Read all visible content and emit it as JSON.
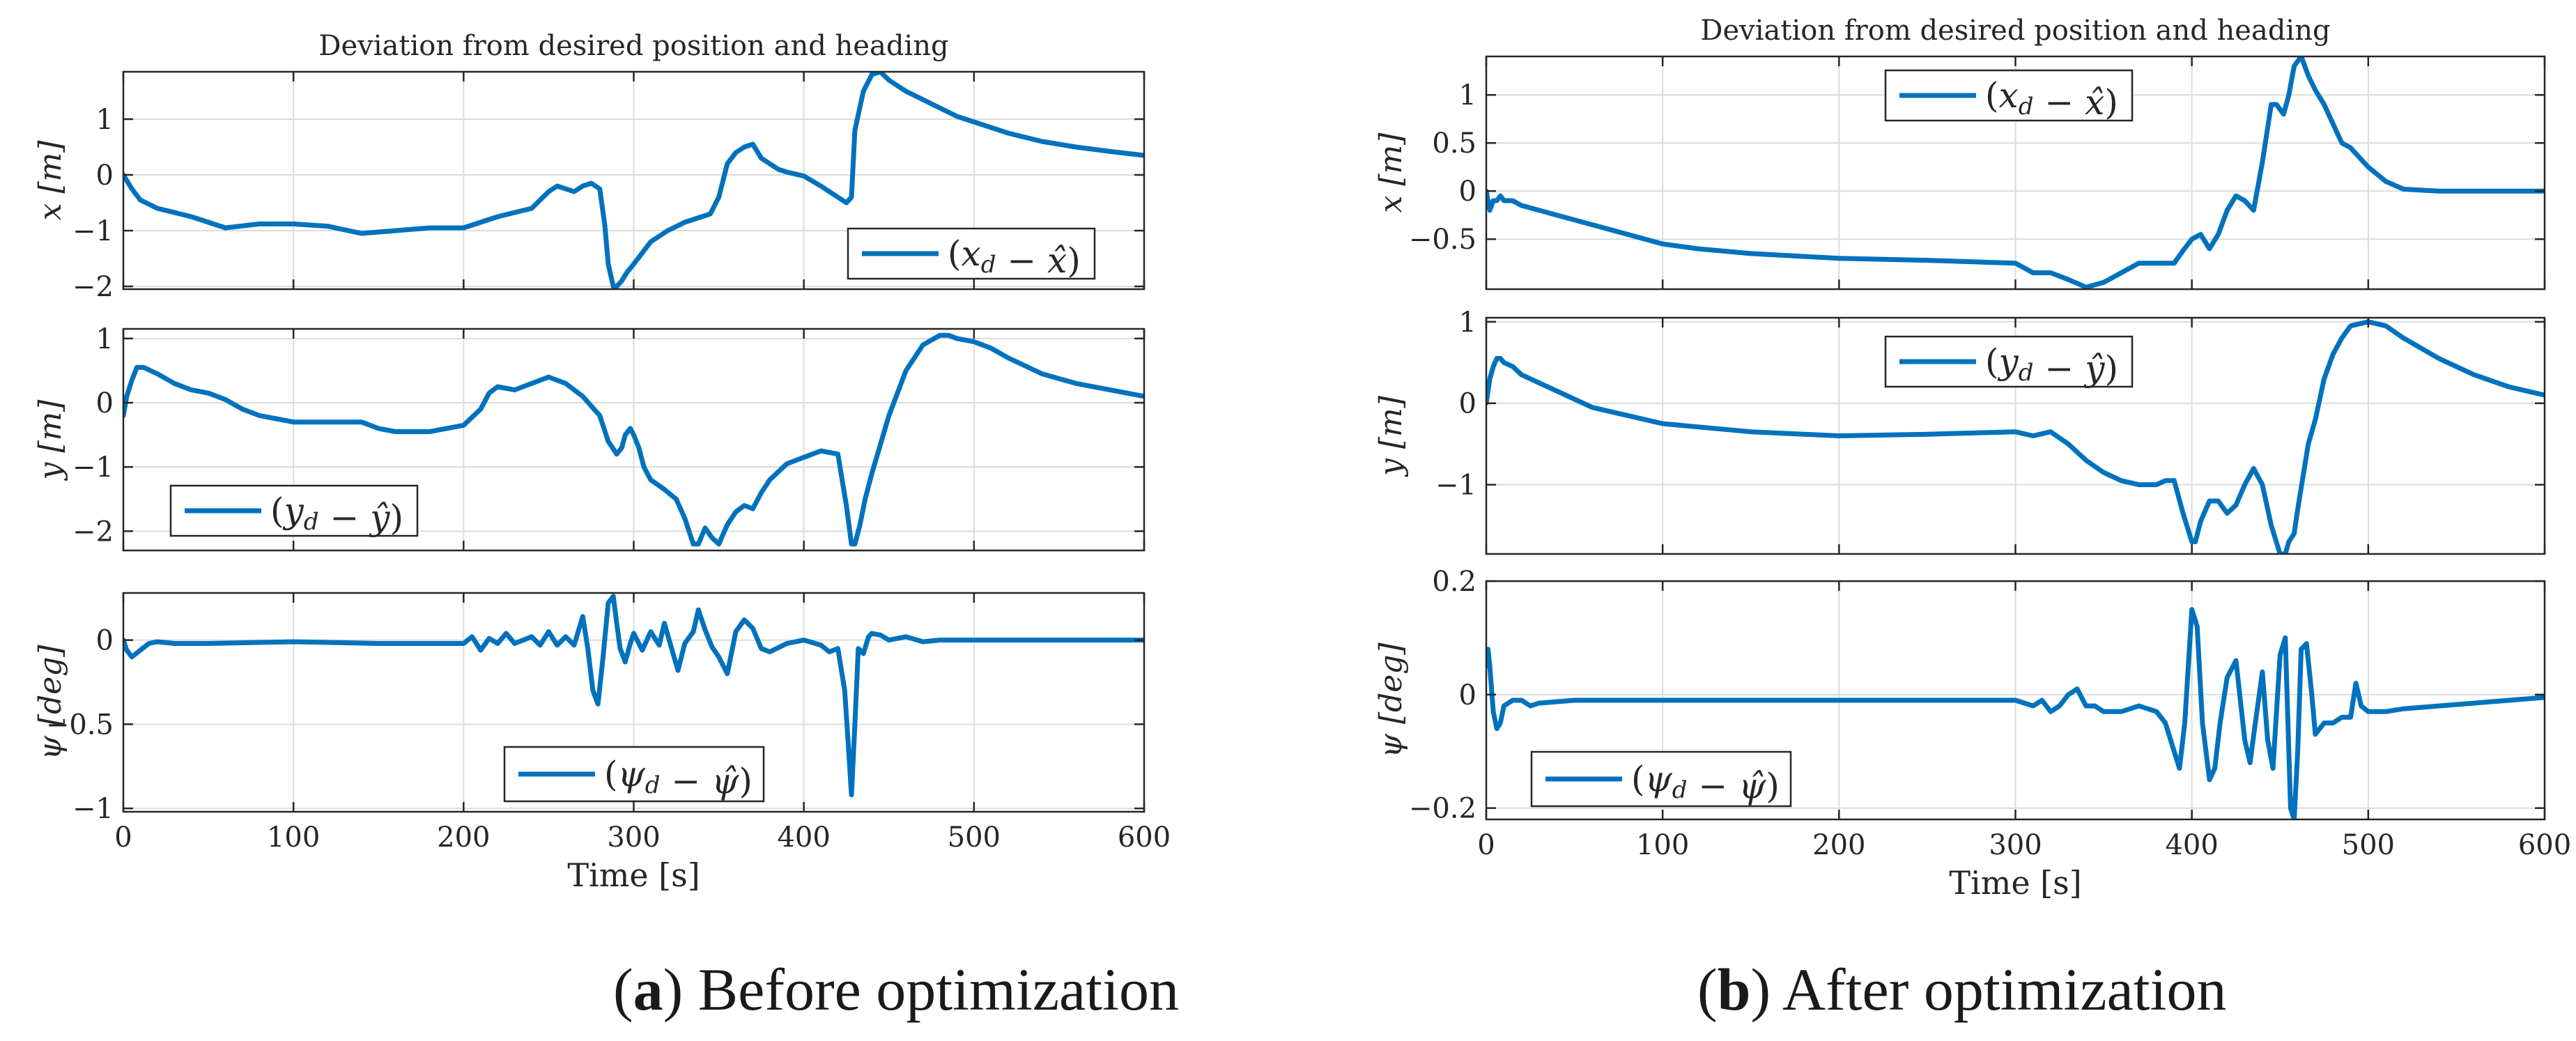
{
  "figure": {
    "series_color": "#0072BD",
    "captions": [
      {
        "tag": "a",
        "text": "Before optimization"
      },
      {
        "tag": "b",
        "text": "After optimization"
      }
    ]
  },
  "chart_data": [
    {
      "type": "line",
      "panel": "a",
      "row": 0,
      "title": "Deviation from desired position and heading",
      "xlabel": "",
      "ylabel": "x [m]",
      "xlim": [
        0,
        600
      ],
      "ylim": [
        -2.05,
        1.85
      ],
      "xticks": [
        0,
        100,
        200,
        300,
        400,
        500,
        600
      ],
      "show_xticklabels": false,
      "yticks": [
        -2,
        -1,
        0,
        1
      ],
      "yticklabels": [
        "-2",
        "-1",
        "0",
        "1"
      ],
      "grid": true,
      "legend": "(x_d − x̂)",
      "legend_loc": "lower-right",
      "series": [
        {
          "name": "(x_d − x̂)",
          "x": [
            0,
            2,
            5,
            10,
            20,
            40,
            60,
            80,
            100,
            120,
            140,
            160,
            180,
            200,
            210,
            220,
            240,
            250,
            255,
            260,
            265,
            270,
            275,
            280,
            283,
            285,
            288,
            290,
            293,
            296,
            300,
            310,
            320,
            330,
            340,
            345,
            350,
            355,
            360,
            365,
            370,
            375,
            380,
            385,
            390,
            400,
            410,
            420,
            425,
            428,
            430,
            435,
            440,
            445,
            450,
            460,
            470,
            480,
            490,
            500,
            520,
            540,
            560,
            580,
            600
          ],
          "y": [
            0,
            -0.1,
            -0.25,
            -0.45,
            -0.6,
            -0.75,
            -0.95,
            -0.88,
            -0.88,
            -0.92,
            -1.05,
            -1,
            -0.95,
            -0.95,
            -0.85,
            -0.75,
            -0.6,
            -0.3,
            -0.2,
            -0.25,
            -0.3,
            -0.2,
            -0.15,
            -0.25,
            -0.9,
            -1.6,
            -2,
            -2,
            -1.9,
            -1.75,
            -1.6,
            -1.2,
            -1,
            -0.85,
            -0.75,
            -0.7,
            -0.4,
            0.2,
            0.4,
            0.5,
            0.55,
            0.3,
            0.2,
            0.1,
            0.05,
            -0.02,
            -0.2,
            -0.4,
            -0.5,
            -0.4,
            0.8,
            1.5,
            1.8,
            1.85,
            1.7,
            1.5,
            1.35,
            1.2,
            1.05,
            0.95,
            0.75,
            0.6,
            0.5,
            0.42,
            0.35
          ]
        }
      ]
    },
    {
      "type": "line",
      "panel": "a",
      "row": 1,
      "xlabel": "",
      "ylabel": "y [m]",
      "xlim": [
        0,
        600
      ],
      "ylim": [
        -2.3,
        1.15
      ],
      "xticks": [
        0,
        100,
        200,
        300,
        400,
        500,
        600
      ],
      "show_xticklabels": false,
      "yticks": [
        -2,
        -1,
        0,
        1
      ],
      "yticklabels": [
        "-2",
        "-1",
        "0",
        "1"
      ],
      "grid": true,
      "legend": "(y_d − ŷ)",
      "legend_loc": "lower-left",
      "series": [
        {
          "name": "(y_d − ŷ)",
          "x": [
            0,
            2,
            5,
            8,
            12,
            20,
            30,
            40,
            50,
            60,
            70,
            80,
            90,
            100,
            120,
            140,
            150,
            160,
            180,
            200,
            210,
            215,
            220,
            230,
            240,
            250,
            260,
            270,
            280,
            285,
            290,
            293,
            295,
            298,
            300,
            303,
            306,
            310,
            318,
            325,
            330,
            335,
            338,
            342,
            346,
            350,
            355,
            360,
            365,
            370,
            375,
            380,
            390,
            400,
            410,
            420,
            425,
            428,
            430,
            433,
            436,
            440,
            450,
            460,
            470,
            480,
            485,
            490,
            500,
            510,
            520,
            540,
            560,
            580,
            600
          ],
          "y": [
            -0.2,
            0.1,
            0.35,
            0.55,
            0.55,
            0.45,
            0.3,
            0.2,
            0.15,
            0.05,
            -0.1,
            -0.2,
            -0.25,
            -0.3,
            -0.3,
            -0.3,
            -0.4,
            -0.45,
            -0.45,
            -0.35,
            -0.1,
            0.15,
            0.25,
            0.2,
            0.3,
            0.4,
            0.3,
            0.1,
            -0.2,
            -0.6,
            -0.8,
            -0.7,
            -0.5,
            -0.4,
            -0.5,
            -0.7,
            -1,
            -1.2,
            -1.35,
            -1.5,
            -1.8,
            -2.2,
            -2.2,
            -1.95,
            -2.1,
            -2.2,
            -1.9,
            -1.7,
            -1.6,
            -1.65,
            -1.4,
            -1.2,
            -0.95,
            -0.85,
            -0.75,
            -0.8,
            -1.6,
            -2.2,
            -2.2,
            -1.9,
            -1.5,
            -1.1,
            -0.2,
            0.5,
            0.9,
            1.05,
            1.05,
            1,
            0.95,
            0.85,
            0.7,
            0.45,
            0.3,
            0.2,
            0.1
          ]
        }
      ]
    },
    {
      "type": "line",
      "panel": "a",
      "row": 2,
      "xlabel": "Time [s]",
      "ylabel": "ψ [deg]",
      "xlim": [
        0,
        600
      ],
      "ylim": [
        -1.02,
        0.28
      ],
      "xticks": [
        0,
        100,
        200,
        300,
        400,
        500,
        600
      ],
      "show_xticklabels": true,
      "xticklabels": [
        "0",
        "100",
        "200",
        "300",
        "400",
        "500",
        "600"
      ],
      "yticks": [
        -1,
        -0.5,
        0
      ],
      "yticklabels": [
        "-1",
        "-0.5",
        "0"
      ],
      "grid": true,
      "legend": "(ψ_d − ψ̂)",
      "legend_loc": "lower-right",
      "series": [
        {
          "name": "(ψ_d − ψ̂)",
          "x": [
            0,
            2,
            5,
            10,
            15,
            20,
            30,
            50,
            100,
            150,
            200,
            205,
            210,
            215,
            220,
            225,
            230,
            240,
            245,
            250,
            255,
            260,
            265,
            270,
            273,
            276,
            279,
            282,
            285,
            288,
            290,
            292,
            295,
            298,
            300,
            305,
            310,
            315,
            318,
            322,
            326,
            330,
            335,
            338,
            342,
            346,
            350,
            355,
            360,
            365,
            370,
            375,
            380,
            390,
            400,
            410,
            415,
            420,
            424,
            426,
            428,
            430,
            432,
            435,
            438,
            440,
            445,
            450,
            460,
            470,
            480,
            500,
            550,
            600
          ],
          "y": [
            0,
            -0.06,
            -0.1,
            -0.06,
            -0.02,
            -0.01,
            -0.02,
            -0.02,
            -0.01,
            -0.02,
            -0.02,
            0.02,
            -0.06,
            0.01,
            -0.02,
            0.04,
            -0.02,
            0.02,
            -0.03,
            0.05,
            -0.03,
            0.02,
            -0.03,
            0.14,
            -0.05,
            -0.3,
            -0.38,
            -0.1,
            0.22,
            0.26,
            0.1,
            -0.05,
            -0.13,
            -0.02,
            0.04,
            -0.06,
            0.05,
            -0.03,
            0.1,
            -0.04,
            -0.18,
            -0.02,
            0.05,
            0.18,
            0.06,
            -0.04,
            -0.1,
            -0.2,
            0.05,
            0.12,
            0.07,
            -0.05,
            -0.07,
            -0.02,
            0,
            -0.03,
            -0.07,
            -0.05,
            -0.3,
            -0.6,
            -0.92,
            -0.5,
            -0.05,
            -0.08,
            0.02,
            0.04,
            0.03,
            0,
            0.02,
            -0.01,
            0,
            0,
            0,
            0
          ]
        }
      ]
    },
    {
      "type": "line",
      "panel": "b",
      "row": 0,
      "title": "Deviation from desired position and heading",
      "xlabel": "",
      "ylabel": "x [m]",
      "xlim": [
        0,
        600
      ],
      "ylim": [
        -1.02,
        1.4
      ],
      "xticks": [
        0,
        100,
        200,
        300,
        400,
        500,
        600
      ],
      "show_xticklabels": false,
      "yticks": [
        -0.5,
        0,
        0.5,
        1
      ],
      "yticklabels": [
        "-0.5",
        "0",
        "0.5",
        "1"
      ],
      "grid": true,
      "legend": "(x_d − x̂)",
      "legend_loc": "top-center",
      "series": [
        {
          "name": "(x_d − x̂)",
          "x": [
            0,
            2,
            4,
            6,
            8,
            10,
            15,
            20,
            40,
            60,
            80,
            100,
            120,
            150,
            200,
            250,
            300,
            310,
            320,
            330,
            340,
            350,
            360,
            370,
            380,
            390,
            395,
            400,
            405,
            410,
            415,
            420,
            425,
            430,
            435,
            440,
            445,
            448,
            452,
            455,
            458,
            462,
            466,
            470,
            475,
            480,
            485,
            490,
            500,
            510,
            520,
            540,
            560,
            580,
            600
          ],
          "y": [
            0,
            -0.2,
            -0.1,
            -0.1,
            -0.05,
            -0.1,
            -0.1,
            -0.15,
            -0.25,
            -0.35,
            -0.45,
            -0.55,
            -0.6,
            -0.65,
            -0.7,
            -0.72,
            -0.75,
            -0.85,
            -0.85,
            -0.92,
            -1,
            -0.95,
            -0.85,
            -0.75,
            -0.75,
            -0.75,
            -0.62,
            -0.5,
            -0.45,
            -0.6,
            -0.45,
            -0.2,
            -0.05,
            -0.1,
            -0.2,
            0.3,
            0.9,
            0.9,
            0.8,
            1,
            1.3,
            1.4,
            1.2,
            1.05,
            0.9,
            0.7,
            0.5,
            0.45,
            0.25,
            0.1,
            0.02,
            0,
            0,
            0,
            0
          ]
        }
      ]
    },
    {
      "type": "line",
      "panel": "b",
      "row": 1,
      "xlabel": "",
      "ylabel": "y [m]",
      "xlim": [
        0,
        600
      ],
      "ylim": [
        -1.85,
        1.05
      ],
      "xticks": [
        0,
        100,
        200,
        300,
        400,
        500,
        600
      ],
      "show_xticklabels": false,
      "yticks": [
        -1,
        0,
        1
      ],
      "yticklabels": [
        "-1",
        "0",
        "1"
      ],
      "grid": true,
      "legend": "(y_d − ŷ)",
      "legend_loc": "top-center",
      "series": [
        {
          "name": "(y_d − ŷ)",
          "x": [
            0,
            2,
            4,
            6,
            8,
            10,
            15,
            20,
            40,
            60,
            80,
            100,
            150,
            200,
            250,
            300,
            310,
            320,
            330,
            340,
            350,
            360,
            370,
            380,
            385,
            390,
            395,
            400,
            402,
            405,
            410,
            415,
            420,
            425,
            430,
            435,
            440,
            445,
            450,
            453,
            455,
            458,
            460,
            463,
            466,
            470,
            475,
            480,
            485,
            490,
            500,
            510,
            520,
            540,
            560,
            580,
            600
          ],
          "y": [
            0,
            0.3,
            0.45,
            0.55,
            0.55,
            0.5,
            0.45,
            0.35,
            0.15,
            -0.05,
            -0.15,
            -0.25,
            -0.35,
            -0.4,
            -0.38,
            -0.35,
            -0.4,
            -0.35,
            -0.5,
            -0.7,
            -0.85,
            -0.95,
            -1,
            -1,
            -0.95,
            -0.95,
            -1.35,
            -1.7,
            -1.7,
            -1.45,
            -1.2,
            -1.2,
            -1.35,
            -1.25,
            -1,
            -0.8,
            -1,
            -1.5,
            -1.85,
            -1.85,
            -1.7,
            -1.6,
            -1.3,
            -0.9,
            -0.5,
            -0.2,
            0.3,
            0.6,
            0.8,
            0.95,
            1,
            0.95,
            0.8,
            0.55,
            0.35,
            0.2,
            0.1
          ]
        }
      ]
    },
    {
      "type": "line",
      "panel": "b",
      "row": 2,
      "xlabel": "Time [s]",
      "ylabel": "ψ [deg]",
      "xlim": [
        0,
        600
      ],
      "ylim": [
        -0.22,
        0.2
      ],
      "xticks": [
        0,
        100,
        200,
        300,
        400,
        500,
        600
      ],
      "show_xticklabels": true,
      "xticklabels": [
        "0",
        "100",
        "200",
        "300",
        "400",
        "500",
        "600"
      ],
      "yticks": [
        -0.2,
        0,
        0.2
      ],
      "yticklabels": [
        "-0.2",
        "0",
        "0.2"
      ],
      "grid": true,
      "legend": "(ψ_d − ψ̂)",
      "legend_loc": "lower-left",
      "series": [
        {
          "name": "(ψ_d − ψ̂)",
          "x": [
            0,
            1,
            2,
            4,
            6,
            8,
            10,
            15,
            20,
            25,
            30,
            50,
            100,
            150,
            200,
            250,
            300,
            310,
            315,
            320,
            325,
            330,
            335,
            340,
            345,
            350,
            360,
            370,
            380,
            385,
            390,
            393,
            396,
            400,
            403,
            406,
            410,
            413,
            416,
            420,
            425,
            430,
            433,
            436,
            440,
            443,
            446,
            450,
            453,
            456,
            458,
            460,
            462,
            465,
            468,
            470,
            475,
            480,
            485,
            490,
            493,
            496,
            500,
            510,
            520,
            540,
            560,
            580,
            600
          ],
          "y": [
            0.05,
            0.08,
            0.05,
            -0.03,
            -0.06,
            -0.05,
            -0.02,
            -0.01,
            -0.01,
            -0.02,
            -0.015,
            -0.01,
            -0.01,
            -0.01,
            -0.01,
            -0.01,
            -0.01,
            -0.02,
            -0.01,
            -0.03,
            -0.02,
            0,
            0.01,
            -0.02,
            -0.02,
            -0.03,
            -0.03,
            -0.02,
            -0.03,
            -0.05,
            -0.1,
            -0.13,
            -0.05,
            0.15,
            0.12,
            -0.05,
            -0.15,
            -0.13,
            -0.05,
            0.03,
            0.06,
            -0.08,
            -0.12,
            -0.05,
            0.04,
            -0.08,
            -0.13,
            0.07,
            0.1,
            -0.2,
            -0.22,
            -0.1,
            0.08,
            0.09,
            0,
            -0.07,
            -0.05,
            -0.05,
            -0.04,
            -0.04,
            0.02,
            -0.02,
            -0.03,
            -0.03,
            -0.025,
            -0.02,
            -0.015,
            -0.01,
            -0.005
          ]
        }
      ]
    }
  ]
}
